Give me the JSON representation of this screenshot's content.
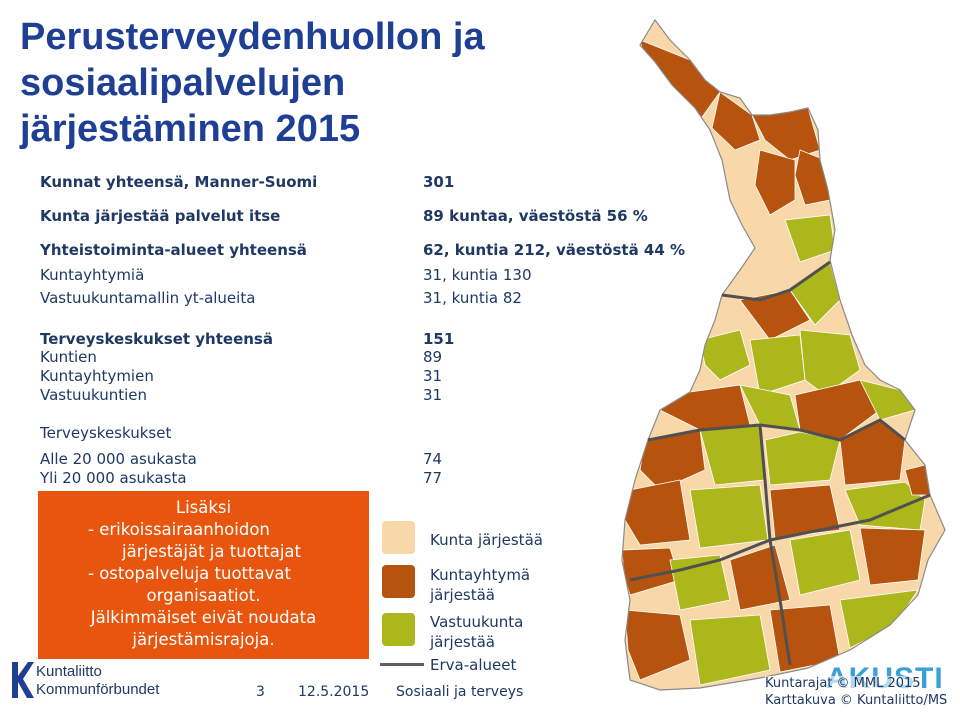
{
  "colors": {
    "kunta": "#f8d7a9",
    "kuntayhtyma": "#b5530f",
    "vastuukunta": "#acb71c",
    "callout_bg": "#e8550f",
    "title": "#1f3f95",
    "text": "#1f3864"
  },
  "title": {
    "line1": "Perusterveydenhuollon ja",
    "line2": "sosiaalipalvelujen",
    "line3": "järjestäminen 2015"
  },
  "stats": [
    {
      "label": "Kunnat yhteensä, Manner-Suomi",
      "value": "301"
    },
    {
      "label": "Kunta järjestää palvelut itse",
      "value": "89 kuntaa, väestöstä 56 %"
    },
    {
      "label": "Yhteistoiminta-alueet yhteensä",
      "value": "62, kuntia 212, väestöstä 44 %"
    },
    {
      "label": "Kuntayhtymiä",
      "value": "31, kuntia 130"
    },
    {
      "label": "Vastuukuntamallin yt-alueita",
      "value": "31, kuntia 82"
    },
    {
      "label": "Terveyskeskukset yhteensä",
      "value": "151"
    },
    {
      "label": "Kuntien",
      "value": "89"
    },
    {
      "label": "Kuntayhtymien",
      "value": "31"
    },
    {
      "label": "Vastuukuntien",
      "value": "31"
    },
    {
      "label": "Terveyskeskukset",
      "value": ""
    },
    {
      "label": "Alle 20 000 asukasta",
      "value": "74"
    },
    {
      "label": "Yli 20 000 asukasta",
      "value": "77"
    }
  ],
  "callout": {
    "line1": "Lisäksi",
    "line2": "-   erikoissairaanhoidon",
    "line3": "järjestäjät ja tuottajat",
    "line4": "-   ostopalveluja tuottavat",
    "line5": "organisaatiot.",
    "line6": "Jälkimmäiset eivät noudata",
    "line7": "järjestämisrajoja."
  },
  "legend": {
    "kunta": "Kunta järjestää",
    "kuntayhtyma_1": "Kuntayhtymä",
    "kuntayhtyma_2": "järjestää",
    "vastuukunta_1": "Vastuukunta",
    "vastuukunta_2": "järjestää",
    "erva": "Erva-alueet"
  },
  "footer": {
    "page": "3",
    "date": "12.5.2015",
    "topic": "Sosiaali ja terveys"
  },
  "logo": {
    "line1": "Kuntaliitto",
    "line2": "Kommunförbundet"
  },
  "credits": {
    "line1": "Kuntarajat © MML 2015",
    "line2": "Karttakuva © Kuntaliitto/MS"
  },
  "akusti": "AKUSTI"
}
